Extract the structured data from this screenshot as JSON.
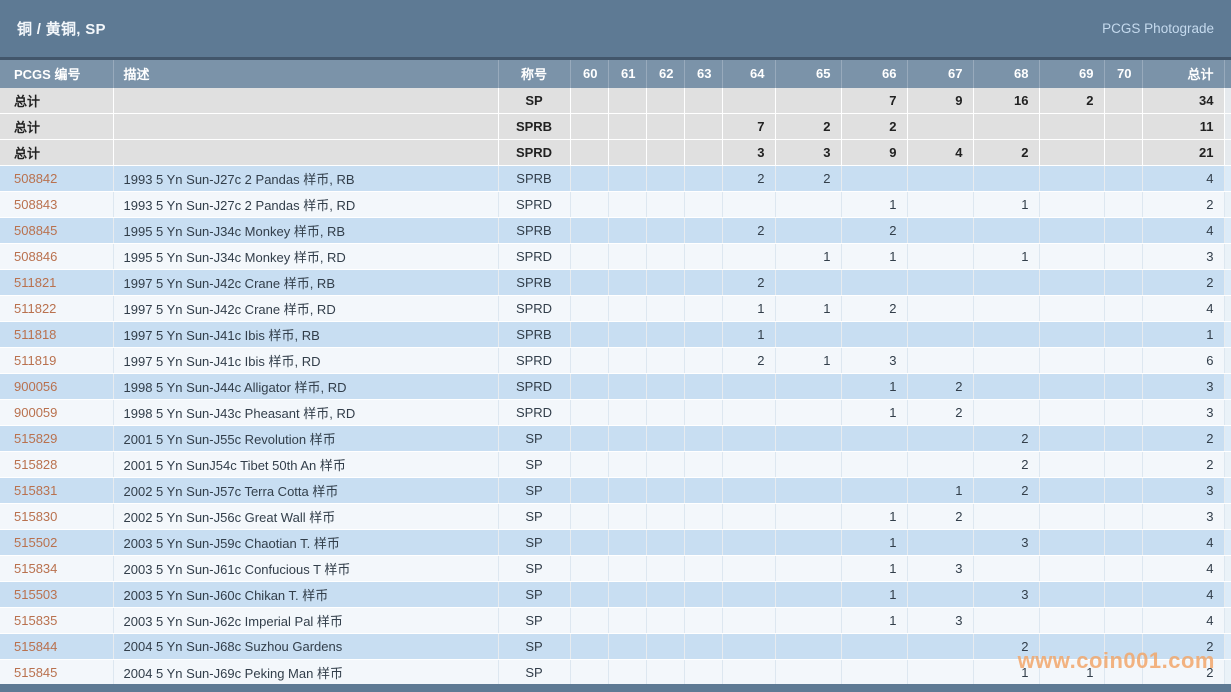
{
  "page": {
    "title": "铜 / 黄铜, SP",
    "photograde_link": "PCGS Photograde",
    "watermark": "www.coin001.com"
  },
  "colors": {
    "header_bg": "#5e7a94",
    "table_header_bg": "#7b93a9",
    "total_row_bg": "#e0e0e0",
    "row_blue": "#c8def2",
    "row_white": "#f3f7fb",
    "number_link": "#b9714e",
    "link_color": "#c5daee",
    "watermark_color": "#f2a76b"
  },
  "table": {
    "header": {
      "number": "PCGS 编号",
      "description": "描述",
      "designation": "称号",
      "total": "总计"
    },
    "grade_columns": [
      "60",
      "61",
      "62",
      "63",
      "64",
      "65",
      "66",
      "67",
      "68",
      "69",
      "70"
    ],
    "total_rows": [
      {
        "label": "总计",
        "designation": "SP",
        "grades": {
          "66": "7",
          "67": "9",
          "68": "16",
          "69": "2"
        },
        "total": "34"
      },
      {
        "label": "总计",
        "designation": "SPRB",
        "grades": {
          "64": "7",
          "65": "2",
          "66": "2"
        },
        "total": "11"
      },
      {
        "label": "总计",
        "designation": "SPRD",
        "grades": {
          "64": "3",
          "65": "3",
          "66": "9",
          "67": "4",
          "68": "2"
        },
        "total": "21"
      }
    ],
    "rows": [
      {
        "number": "508842",
        "description": "1993 5 Yn Sun-J27c 2 Pandas 样币, RB",
        "designation": "SPRB",
        "grades": {
          "64": "2",
          "65": "2"
        },
        "total": "4"
      },
      {
        "number": "508843",
        "description": "1993 5 Yn Sun-J27c 2 Pandas 样币, RD",
        "designation": "SPRD",
        "grades": {
          "66": "1",
          "68": "1"
        },
        "total": "2"
      },
      {
        "number": "508845",
        "description": "1995 5 Yn Sun-J34c Monkey 样币, RB",
        "designation": "SPRB",
        "grades": {
          "64": "2",
          "66": "2"
        },
        "total": "4"
      },
      {
        "number": "508846",
        "description": "1995 5 Yn Sun-J34c Monkey 样币, RD",
        "designation": "SPRD",
        "grades": {
          "65": "1",
          "66": "1",
          "68": "1"
        },
        "total": "3"
      },
      {
        "number": "511821",
        "description": "1997 5 Yn Sun-J42c Crane 样币, RB",
        "designation": "SPRB",
        "grades": {
          "64": "2"
        },
        "total": "2"
      },
      {
        "number": "511822",
        "description": "1997 5 Yn Sun-J42c Crane 样币, RD",
        "designation": "SPRD",
        "grades": {
          "64": "1",
          "65": "1",
          "66": "2"
        },
        "total": "4"
      },
      {
        "number": "511818",
        "description": "1997 5 Yn Sun-J41c Ibis 样币, RB",
        "designation": "SPRB",
        "grades": {
          "64": "1"
        },
        "total": "1"
      },
      {
        "number": "511819",
        "description": "1997 5 Yn Sun-J41c Ibis 样币, RD",
        "designation": "SPRD",
        "grades": {
          "64": "2",
          "65": "1",
          "66": "3"
        },
        "total": "6"
      },
      {
        "number": "900056",
        "description": "1998 5 Yn Sun-J44c Alligator 样币, RD",
        "designation": "SPRD",
        "grades": {
          "66": "1",
          "67": "2"
        },
        "total": "3"
      },
      {
        "number": "900059",
        "description": "1998 5 Yn Sun-J43c Pheasant 样币, RD",
        "designation": "SPRD",
        "grades": {
          "66": "1",
          "67": "2"
        },
        "total": "3"
      },
      {
        "number": "515829",
        "description": "2001 5 Yn Sun-J55c Revolution 样币",
        "designation": "SP",
        "grades": {
          "68": "2"
        },
        "total": "2"
      },
      {
        "number": "515828",
        "description": "2001 5 Yn SunJ54c Tibet 50th An 样币",
        "designation": "SP",
        "grades": {
          "68": "2"
        },
        "total": "2"
      },
      {
        "number": "515831",
        "description": "2002 5 Yn Sun-J57c Terra Cotta 样币",
        "designation": "SP",
        "grades": {
          "67": "1",
          "68": "2"
        },
        "total": "3"
      },
      {
        "number": "515830",
        "description": "2002 5 Yn Sun-J56c Great Wall 样币",
        "designation": "SP",
        "grades": {
          "66": "1",
          "67": "2"
        },
        "total": "3"
      },
      {
        "number": "515502",
        "description": "2003 5 Yn Sun-J59c Chaotian T. 样币",
        "designation": "SP",
        "grades": {
          "66": "1",
          "68": "3"
        },
        "total": "4"
      },
      {
        "number": "515834",
        "description": "2003 5 Yn Sun-J61c Confucious T 样币",
        "designation": "SP",
        "grades": {
          "66": "1",
          "67": "3"
        },
        "total": "4"
      },
      {
        "number": "515503",
        "description": "2003 5 Yn Sun-J60c Chikan T. 样币",
        "designation": "SP",
        "grades": {
          "66": "1",
          "68": "3"
        },
        "total": "4"
      },
      {
        "number": "515835",
        "description": "2003 5 Yn Sun-J62c Imperial Pal 样币",
        "designation": "SP",
        "grades": {
          "66": "1",
          "67": "3"
        },
        "total": "4"
      },
      {
        "number": "515844",
        "description": "2004 5 Yn Sun-J68c Suzhou Gardens",
        "designation": "SP",
        "grades": {
          "68": "2"
        },
        "total": "2"
      },
      {
        "number": "515845",
        "description": "2004 5 Yn Sun-J69c Peking Man 样币",
        "designation": "SP",
        "grades": {
          "68": "1",
          "69": "1"
        },
        "total": "2"
      }
    ]
  }
}
